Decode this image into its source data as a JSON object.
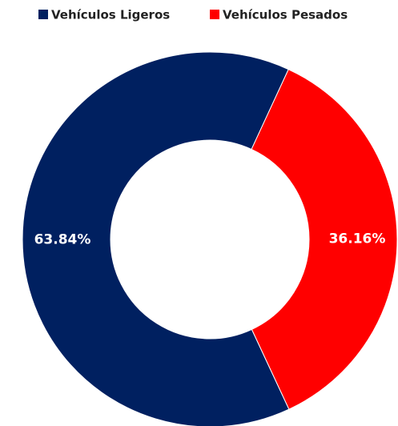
{
  "chart_data": {
    "type": "pie",
    "donut": true,
    "categories": [
      "Vehículos Ligeros",
      "Vehículos Pesados"
    ],
    "values": [
      63.84,
      36.16
    ],
    "value_labels": [
      "63.84%",
      "36.16%"
    ],
    "colors": [
      "#002060",
      "#ff0000"
    ],
    "legend": "top"
  }
}
